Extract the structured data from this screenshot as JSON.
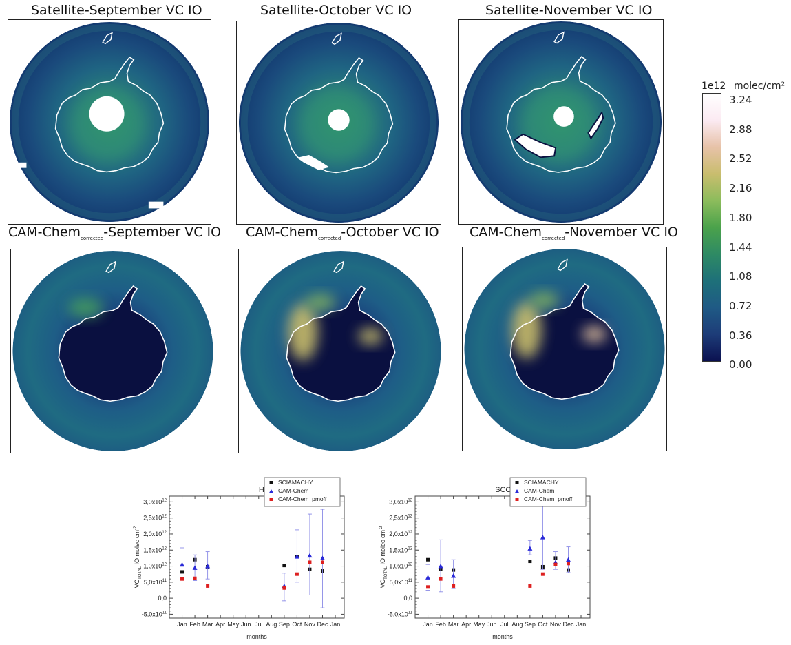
{
  "panels": [
    {
      "id": "sat-sep",
      "title": "Satellite-September VC IO",
      "kind": "satellite",
      "month": "sep"
    },
    {
      "id": "sat-oct",
      "title": "Satellite-October VC IO",
      "kind": "satellite",
      "month": "oct"
    },
    {
      "id": "sat-nov",
      "title": "Satellite-November VC IO",
      "kind": "satellite",
      "month": "nov"
    },
    {
      "id": "cam-sep",
      "title_prefix": "CAM-Chem",
      "title_sub": "corrected",
      "title_suffix": "-September VC IO",
      "kind": "model",
      "month": "sep"
    },
    {
      "id": "cam-oct",
      "title_prefix": "CAM-Chem",
      "title_sub": "corrected",
      "title_suffix": "-October VC IO",
      "kind": "model",
      "month": "oct"
    },
    {
      "id": "cam-nov",
      "title_prefix": "CAM-Chem",
      "title_sub": "corrected",
      "title_suffix": "-November VC IO",
      "kind": "model",
      "month": "nov"
    }
  ],
  "colorbar": {
    "scale_label": "1e12",
    "unit_label": "molec/cm²",
    "ticks": [
      "3.24",
      "2.88",
      "2.52",
      "2.16",
      "1.80",
      "1.44",
      "1.08",
      "0.72",
      "0.36",
      "0.00"
    ],
    "colors": [
      "#0b1150",
      "#1d3c78",
      "#1f5a85",
      "#1e7079",
      "#2e8a64",
      "#4ba24b",
      "#8cbc5c",
      "#c9bd6e",
      "#e7c2a8",
      "#fbeaf2",
      "#ffffff"
    ]
  },
  "chart_data": [
    {
      "type": "scatter",
      "title": "HALLEY",
      "xlabel": "months",
      "ylabel": "VC",
      "ylabel_sub": "TOTAL",
      "ylabel_rest": "IO molec cm",
      "ylabel_sup": "-2",
      "categories": [
        "Jan",
        "Feb",
        "Mar",
        "Apr",
        "May",
        "Jun",
        "Jul",
        "Aug",
        "Sep",
        "Oct",
        "Nov",
        "Dec",
        "Jan"
      ],
      "y_tick_labels": [
        {
          "v": 3.0,
          "m": "3,0x10",
          "e": "12"
        },
        {
          "v": 2.5,
          "m": "2,5x10",
          "e": "12"
        },
        {
          "v": 2.0,
          "m": "2,0x10",
          "e": "12"
        },
        {
          "v": 1.5,
          "m": "1,5x10",
          "e": "12"
        },
        {
          "v": 1.0,
          "m": "1,0x10",
          "e": "12"
        },
        {
          "v": 0.5,
          "m": "5,0x10",
          "e": "11"
        },
        {
          "v": 0.0,
          "m": "0,0",
          "e": ""
        },
        {
          "v": -0.5,
          "m": "-5,0x10",
          "e": "11"
        }
      ],
      "ylim": [
        -0.62,
        3.18
      ],
      "y_units": "x10^12 molec cm^-2",
      "legend_position": "top-right",
      "series": [
        {
          "name": "SCIAMACHY",
          "marker": "square",
          "color": "#111111",
          "points": [
            {
              "x": 1,
              "y": 0.82
            },
            {
              "x": 2,
              "y": 1.2
            },
            {
              "x": 3,
              "y": 0.98
            },
            {
              "x": 9,
              "y": 1.02
            },
            {
              "x": 10,
              "y": 1.3
            },
            {
              "x": 11,
              "y": 0.9
            },
            {
              "x": 12,
              "y": 0.85
            }
          ]
        },
        {
          "name": "CAM-Chem",
          "marker": "triangle",
          "color": "#2a2ad8",
          "points": [
            {
              "x": 1,
              "y": 1.05,
              "lo": 0.6,
              "hi": 1.57
            },
            {
              "x": 2,
              "y": 0.95,
              "lo": 0.55,
              "hi": 1.35
            },
            {
              "x": 3,
              "y": 1.0,
              "lo": 0.6,
              "hi": 1.45
            },
            {
              "x": 9,
              "y": 0.38,
              "lo": -0.08,
              "hi": 0.78
            },
            {
              "x": 10,
              "y": 1.3,
              "lo": 0.5,
              "hi": 2.13
            },
            {
              "x": 11,
              "y": 1.33,
              "lo": 0.1,
              "hi": 2.62
            },
            {
              "x": 12,
              "y": 1.25,
              "lo": -0.3,
              "hi": 2.77
            }
          ]
        },
        {
          "name": "CAM-Chem_pmoff",
          "marker": "square",
          "color": "#dd2020",
          "points": [
            {
              "x": 1,
              "y": 0.6
            },
            {
              "x": 2,
              "y": 0.62
            },
            {
              "x": 3,
              "y": 0.38
            },
            {
              "x": 9,
              "y": 0.32
            },
            {
              "x": 10,
              "y": 0.75
            },
            {
              "x": 11,
              "y": 1.12
            },
            {
              "x": 12,
              "y": 1.12
            }
          ]
        }
      ]
    },
    {
      "type": "scatter",
      "title": "SCOTT-BASE",
      "xlabel": "months",
      "ylabel": "VC",
      "ylabel_sub": "TOTAL",
      "ylabel_rest": "IO molec cm",
      "ylabel_sup": "-2",
      "categories": [
        "Jan",
        "Feb",
        "Mar",
        "Apr",
        "May",
        "Jun",
        "Jul",
        "Aug",
        "Sep",
        "Oct",
        "Nov",
        "Dec",
        "Jan"
      ],
      "y_tick_labels": [
        {
          "v": 3.0,
          "m": "3,0x10",
          "e": "12"
        },
        {
          "v": 2.5,
          "m": "2,5x10",
          "e": "12"
        },
        {
          "v": 2.0,
          "m": "2,0x10",
          "e": "12"
        },
        {
          "v": 1.5,
          "m": "1,5x10",
          "e": "12"
        },
        {
          "v": 1.0,
          "m": "1,0x10",
          "e": "12"
        },
        {
          "v": 0.5,
          "m": "5,0x10",
          "e": "11"
        },
        {
          "v": 0.0,
          "m": "0,0",
          "e": ""
        },
        {
          "v": -0.5,
          "m": "-5,0x10",
          "e": "11"
        }
      ],
      "ylim": [
        -0.62,
        3.18
      ],
      "y_units": "x10^12 molec cm^-2",
      "legend_position": "top-right",
      "series": [
        {
          "name": "SCIAMACHY",
          "marker": "square",
          "color": "#111111",
          "points": [
            {
              "x": 1,
              "y": 1.2
            },
            {
              "x": 2,
              "y": 0.9
            },
            {
              "x": 3,
              "y": 0.88
            },
            {
              "x": 9,
              "y": 1.15
            },
            {
              "x": 10,
              "y": 0.98
            },
            {
              "x": 11,
              "y": 1.25
            },
            {
              "x": 12,
              "y": 0.88
            }
          ]
        },
        {
          "name": "CAM-Chem",
          "marker": "triangle",
          "color": "#2a2ad8",
          "points": [
            {
              "x": 1,
              "y": 0.65,
              "lo": 0.25,
              "hi": 1.05
            },
            {
              "x": 2,
              "y": 1.0,
              "lo": 0.2,
              "hi": 1.82
            },
            {
              "x": 3,
              "y": 0.7,
              "lo": 0.3,
              "hi": 1.2
            },
            {
              "x": 9,
              "y": 1.55,
              "lo": 1.35,
              "hi": 1.8
            },
            {
              "x": 10,
              "y": 1.9,
              "lo": 0.9,
              "hi": 3.1
            },
            {
              "x": 11,
              "y": 1.12,
              "lo": 0.9,
              "hi": 1.45
            },
            {
              "x": 12,
              "y": 1.2,
              "lo": 0.8,
              "hi": 1.6
            }
          ]
        },
        {
          "name": "CAM-Chem_pmoff",
          "marker": "square",
          "color": "#dd2020",
          "points": [
            {
              "x": 1,
              "y": 0.35
            },
            {
              "x": 2,
              "y": 0.6
            },
            {
              "x": 3,
              "y": 0.38
            },
            {
              "x": 9,
              "y": 0.38
            },
            {
              "x": 10,
              "y": 0.75
            },
            {
              "x": 11,
              "y": 1.05
            },
            {
              "x": 12,
              "y": 1.08
            }
          ]
        }
      ]
    }
  ]
}
